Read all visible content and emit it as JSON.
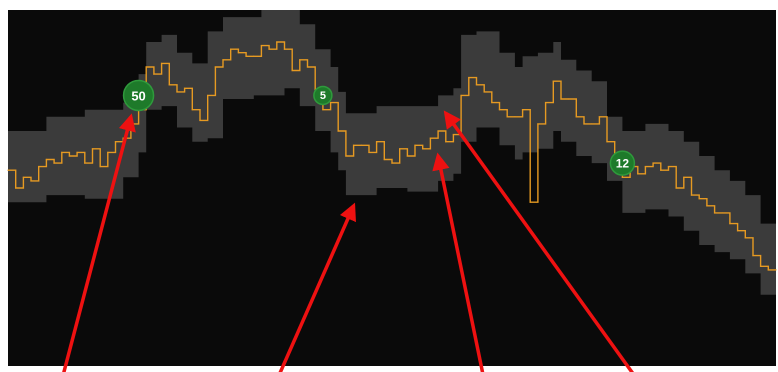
{
  "chart_data": {
    "type": "line",
    "title": "",
    "xlabel": "",
    "ylabel": "",
    "grid": false,
    "legend": "none",
    "x_range": [
      0,
      100
    ],
    "y_range": [
      0,
      100
    ],
    "colors": {
      "background": "#0a0a0a",
      "band": "#3b3b3b",
      "line": "#e69a22",
      "marker": "#1e7a2a",
      "marker_border": "#2f9a3c",
      "arrow": "#ee1111"
    },
    "series": [
      {
        "values": [
          [
            0,
            55
          ],
          [
            1,
            50
          ],
          [
            2,
            53
          ],
          [
            3,
            52
          ],
          [
            4,
            56
          ],
          [
            5,
            58
          ],
          [
            6,
            57
          ],
          [
            7,
            60
          ],
          [
            8,
            59
          ],
          [
            9,
            60
          ],
          [
            10,
            57
          ],
          [
            11,
            61
          ],
          [
            12,
            56
          ],
          [
            13,
            60
          ],
          [
            14,
            63
          ],
          [
            15,
            64
          ],
          [
            16,
            68
          ],
          [
            17,
            72
          ],
          [
            18,
            84
          ],
          [
            19,
            82
          ],
          [
            20,
            85
          ],
          [
            21,
            79
          ],
          [
            22,
            77
          ],
          [
            23,
            78
          ],
          [
            24,
            72
          ],
          [
            25,
            69
          ],
          [
            26,
            76
          ],
          [
            27,
            84
          ],
          [
            28,
            86
          ],
          [
            29,
            89
          ],
          [
            30,
            88
          ],
          [
            31,
            87
          ],
          [
            32,
            87
          ],
          [
            33,
            90
          ],
          [
            34,
            89
          ],
          [
            35,
            91
          ],
          [
            36,
            89
          ],
          [
            37,
            83
          ],
          [
            38,
            86
          ],
          [
            39,
            84
          ],
          [
            40,
            75
          ],
          [
            41,
            72
          ],
          [
            42,
            74
          ],
          [
            43,
            66
          ],
          [
            44,
            59
          ],
          [
            45,
            62
          ],
          [
            46,
            62
          ],
          [
            47,
            60
          ],
          [
            48,
            63
          ],
          [
            49,
            58
          ],
          [
            50,
            57
          ],
          [
            51,
            61
          ],
          [
            52,
            59
          ],
          [
            53,
            62
          ],
          [
            54,
            61
          ],
          [
            55,
            64
          ],
          [
            56,
            66
          ],
          [
            57,
            63
          ],
          [
            58,
            65
          ],
          [
            59,
            76
          ],
          [
            60,
            81
          ],
          [
            61,
            79
          ],
          [
            62,
            77
          ],
          [
            63,
            74
          ],
          [
            64,
            72
          ],
          [
            65,
            70
          ],
          [
            66,
            70
          ],
          [
            67,
            72
          ],
          [
            68,
            46
          ],
          [
            69,
            68
          ],
          [
            70,
            74
          ],
          [
            71,
            80
          ],
          [
            72,
            75
          ],
          [
            73,
            75
          ],
          [
            74,
            70
          ],
          [
            75,
            68
          ],
          [
            76,
            68
          ],
          [
            77,
            70
          ],
          [
            78,
            63
          ],
          [
            79,
            58
          ],
          [
            80,
            53
          ],
          [
            81,
            56
          ],
          [
            82,
            54
          ],
          [
            83,
            56
          ],
          [
            84,
            57
          ],
          [
            85,
            55
          ],
          [
            86,
            56
          ],
          [
            87,
            50
          ],
          [
            88,
            53
          ],
          [
            89,
            48
          ],
          [
            90,
            47
          ],
          [
            91,
            45
          ],
          [
            92,
            43
          ],
          [
            93,
            43
          ],
          [
            94,
            40
          ],
          [
            95,
            38
          ],
          [
            96,
            36
          ],
          [
            97,
            31
          ],
          [
            98,
            28
          ],
          [
            99,
            27
          ],
          [
            100,
            27
          ]
        ],
        "band_upper": [
          [
            0,
            66
          ],
          [
            5,
            70
          ],
          [
            10,
            72
          ],
          [
            15,
            74
          ],
          [
            17,
            82
          ],
          [
            18,
            91
          ],
          [
            20,
            93
          ],
          [
            22,
            88
          ],
          [
            24,
            85
          ],
          [
            26,
            94
          ],
          [
            28,
            98
          ],
          [
            32,
            98
          ],
          [
            33,
            100
          ],
          [
            36,
            100
          ],
          [
            38,
            96
          ],
          [
            40,
            89
          ],
          [
            42,
            84
          ],
          [
            43,
            77
          ],
          [
            44,
            71
          ],
          [
            48,
            73
          ],
          [
            52,
            73
          ],
          [
            56,
            76
          ],
          [
            58,
            78
          ],
          [
            59,
            93
          ],
          [
            61,
            94
          ],
          [
            64,
            88
          ],
          [
            66,
            84
          ],
          [
            67,
            87
          ],
          [
            69,
            88
          ],
          [
            71,
            91
          ],
          [
            72,
            86
          ],
          [
            74,
            83
          ],
          [
            76,
            80
          ],
          [
            78,
            70
          ],
          [
            80,
            66
          ],
          [
            83,
            68
          ],
          [
            86,
            66
          ],
          [
            88,
            63
          ],
          [
            90,
            59
          ],
          [
            92,
            55
          ],
          [
            94,
            52
          ],
          [
            96,
            48
          ],
          [
            98,
            40
          ],
          [
            100,
            38
          ]
        ],
        "band_lower": [
          [
            0,
            46
          ],
          [
            5,
            48
          ],
          [
            10,
            47
          ],
          [
            15,
            53
          ],
          [
            17,
            60
          ],
          [
            18,
            72
          ],
          [
            20,
            73
          ],
          [
            22,
            67
          ],
          [
            24,
            63
          ],
          [
            26,
            64
          ],
          [
            28,
            75
          ],
          [
            32,
            76
          ],
          [
            36,
            78
          ],
          [
            38,
            73
          ],
          [
            40,
            66
          ],
          [
            42,
            60
          ],
          [
            43,
            55
          ],
          [
            44,
            48
          ],
          [
            48,
            50
          ],
          [
            52,
            49
          ],
          [
            56,
            52
          ],
          [
            58,
            54
          ],
          [
            59,
            63
          ],
          [
            61,
            67
          ],
          [
            64,
            62
          ],
          [
            66,
            58
          ],
          [
            67,
            60
          ],
          [
            69,
            61
          ],
          [
            71,
            66
          ],
          [
            72,
            63
          ],
          [
            74,
            59
          ],
          [
            76,
            57
          ],
          [
            78,
            52
          ],
          [
            80,
            43
          ],
          [
            83,
            44
          ],
          [
            86,
            42
          ],
          [
            88,
            38
          ],
          [
            90,
            34
          ],
          [
            92,
            32
          ],
          [
            94,
            30
          ],
          [
            96,
            26
          ],
          [
            98,
            20
          ],
          [
            100,
            18
          ]
        ]
      }
    ],
    "markers": [
      {
        "label": "50",
        "x": 17,
        "y": 76,
        "size": "large"
      },
      {
        "label": "5",
        "x": 41,
        "y": 76,
        "size": "small"
      },
      {
        "label": "12",
        "x": 80,
        "y": 57,
        "size": "medium"
      }
    ],
    "arrows": [
      {
        "from": [
          7,
          -4
        ],
        "to": [
          16,
          70
        ]
      },
      {
        "from": [
          35,
          -4
        ],
        "to": [
          45,
          45
        ]
      },
      {
        "from": [
          62,
          -4
        ],
        "to": [
          56,
          59
        ]
      },
      {
        "from": [
          82,
          -4
        ],
        "to": [
          57,
          71
        ]
      }
    ]
  }
}
